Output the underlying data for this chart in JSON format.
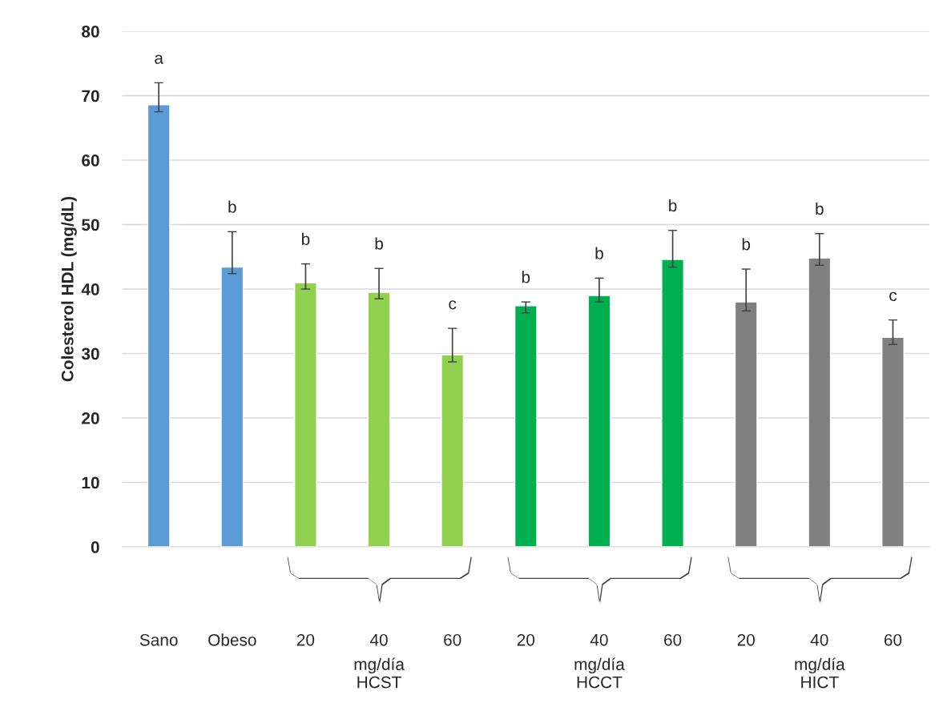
{
  "chart_data": {
    "type": "bar",
    "ylabel": "Colesterol HDL (mg/dL)",
    "categories": [
      "Sano",
      "Obeso",
      "20",
      "40",
      "60",
      "20",
      "40",
      "60",
      "20",
      "40",
      "60"
    ],
    "values": [
      68.6,
      43.4,
      41.0,
      39.5,
      29.8,
      37.4,
      39.0,
      44.6,
      38.0,
      44.8,
      32.5
    ],
    "colors": [
      "#5b9bd5",
      "#5b9bd5",
      "#92d050",
      "#92d050",
      "#92d050",
      "#00b050",
      "#00b050",
      "#00b050",
      "#808080",
      "#808080",
      "#808080"
    ],
    "errors": [
      [
        67.5,
        72.0
      ],
      [
        42.4,
        48.9
      ],
      [
        40.0,
        43.9
      ],
      [
        38.5,
        43.2
      ],
      [
        28.7,
        33.9
      ],
      [
        36.3,
        38.0
      ],
      [
        38.0,
        41.7
      ],
      [
        43.4,
        49.1
      ],
      [
        36.6,
        43.1
      ],
      [
        43.7,
        48.6
      ],
      [
        31.4,
        35.2
      ]
    ],
    "ylim": [
      0,
      80
    ],
    "yticks": [
      0,
      10,
      20,
      30,
      40,
      50,
      60,
      70,
      80
    ],
    "grid": "y",
    "annotations": [
      "a",
      "b",
      "b",
      "b",
      "c",
      "b",
      "b",
      "b",
      "b",
      "b",
      "c",
      "mg/día\nHCST",
      "mg/día\nHCCT",
      "mg/día\nHICT"
    ]
  }
}
